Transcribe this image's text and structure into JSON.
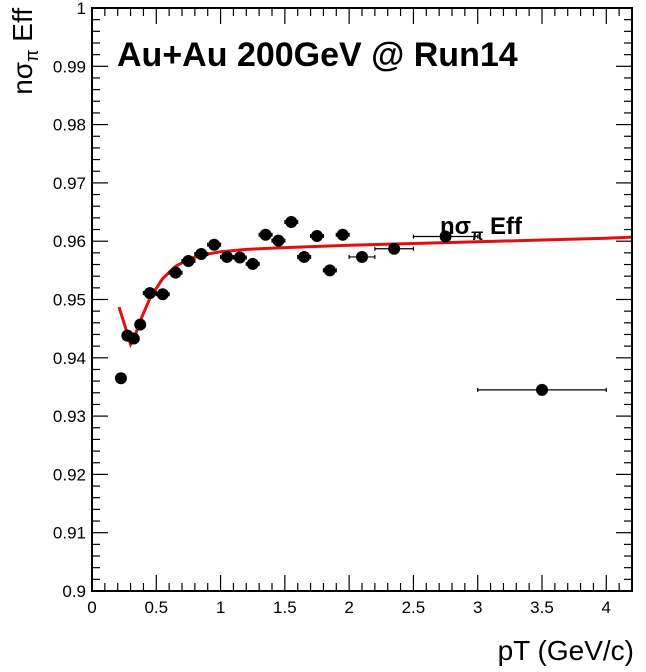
{
  "chart_data": {
    "type": "scatter",
    "title": "Au+Au 200GeV @ Run14",
    "xlabel": "pT (GeV/c)",
    "ylabel": "nσ_π Eff",
    "xlim": [
      0,
      4.2
    ],
    "ylim": [
      0.9,
      1.0
    ],
    "x_ticks": [
      0,
      0.5,
      1,
      1.5,
      2,
      2.5,
      3,
      3.5,
      4
    ],
    "y_ticks": [
      0.9,
      0.91,
      0.92,
      0.93,
      0.94,
      0.95,
      0.96,
      0.97,
      0.98,
      0.99,
      1.0
    ],
    "legend": {
      "label": "nσ_π Eff",
      "position": "upper-right"
    },
    "series": [
      {
        "x": [
          0.225,
          0.275,
          0.325,
          0.375,
          0.45,
          0.55,
          0.65,
          0.75,
          0.85,
          0.95,
          1.05,
          1.15,
          1.25,
          1.35,
          1.45,
          1.55,
          1.65,
          1.75,
          1.85,
          1.95,
          2.1,
          2.35,
          2.75,
          3.5
        ],
        "y": [
          0.9365,
          0.9438,
          0.9433,
          0.9457,
          0.9511,
          0.9509,
          0.9546,
          0.9566,
          0.9578,
          0.9594,
          0.9573,
          0.9572,
          0.9561,
          0.9611,
          0.9601,
          0.9633,
          0.9573,
          0.9609,
          0.955,
          0.9611,
          0.9573,
          0.9587,
          0.9608,
          0.9345
        ],
        "xerr": [
          0.025,
          0.025,
          0.025,
          0.025,
          0.05,
          0.05,
          0.05,
          0.05,
          0.05,
          0.05,
          0.05,
          0.05,
          0.05,
          0.05,
          0.05,
          0.05,
          0.05,
          0.05,
          0.05,
          0.05,
          0.1,
          0.15,
          0.25,
          0.5
        ]
      }
    ],
    "fit": {
      "x": [
        0.21,
        0.24,
        0.27,
        0.3,
        0.33,
        0.38,
        0.45,
        0.55,
        0.65,
        0.75,
        0.85,
        1.0,
        1.2,
        1.5,
        2.0,
        2.5,
        3.0,
        3.5,
        4.0,
        4.2
      ],
      "y": [
        0.9487,
        0.9466,
        0.9445,
        0.9423,
        0.9435,
        0.9466,
        0.9502,
        0.9536,
        0.9557,
        0.9569,
        0.9576,
        0.9582,
        0.9586,
        0.9589,
        0.9593,
        0.9596,
        0.9599,
        0.9602,
        0.9605,
        0.9607
      ]
    }
  }
}
